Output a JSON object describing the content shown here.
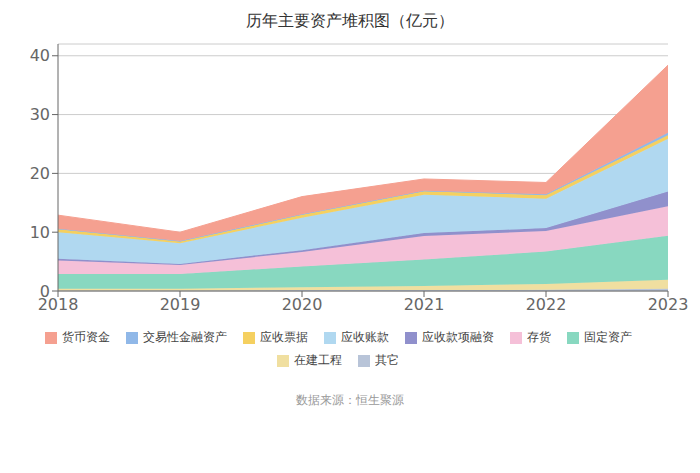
{
  "chart_data": {
    "type": "area",
    "stacked": true,
    "title": "历年主要资产堆积图（亿元）",
    "x": [
      2018,
      2019,
      2020,
      2021,
      2022,
      2023
    ],
    "xlim": [
      2018,
      2023
    ],
    "xticks": [
      2018,
      2019,
      2020,
      2021,
      2022,
      2023
    ],
    "series": [
      {
        "name": "其它",
        "color": "#b8c4d8",
        "values": [
          0.1,
          0.1,
          0.15,
          0.15,
          0.2,
          0.4
        ]
      },
      {
        "name": "在建工程",
        "color": "#f0dfa0",
        "values": [
          0.3,
          0.3,
          0.5,
          0.7,
          1.0,
          1.5
        ]
      },
      {
        "name": "固定资产",
        "color": "#88d8c0",
        "values": [
          2.5,
          2.5,
          3.5,
          4.5,
          5.5,
          7.5
        ]
      },
      {
        "name": "存货",
        "color": "#f5c0d8",
        "values": [
          2.3,
          1.5,
          2.5,
          4.0,
          3.5,
          5.0
        ]
      },
      {
        "name": "应收款项融资",
        "color": "#9090cc",
        "values": [
          0.3,
          0.2,
          0.3,
          0.5,
          0.5,
          2.5
        ]
      },
      {
        "name": "应收账款",
        "color": "#b0d8f0",
        "values": [
          4.5,
          3.5,
          5.5,
          6.5,
          5.0,
          9.0
        ]
      },
      {
        "name": "应收票据",
        "color": "#f5d060",
        "values": [
          0.5,
          0.3,
          0.5,
          0.6,
          0.6,
          0.6
        ]
      },
      {
        "name": "交易性金融资产",
        "color": "#90b8e8",
        "values": [
          0.1,
          0.1,
          0.1,
          0.1,
          0.15,
          0.4
        ]
      },
      {
        "name": "货币资金",
        "color": "#f5a090",
        "values": [
          2.3,
          1.5,
          3.0,
          2.0,
          2.0,
          11.5
        ]
      }
    ],
    "ylim": [
      0,
      42
    ],
    "yticks": [
      0,
      10,
      20,
      30,
      40
    ],
    "grid": true,
    "legend": "bottom",
    "annotations": [
      "数据来源：恒生聚源"
    ]
  }
}
